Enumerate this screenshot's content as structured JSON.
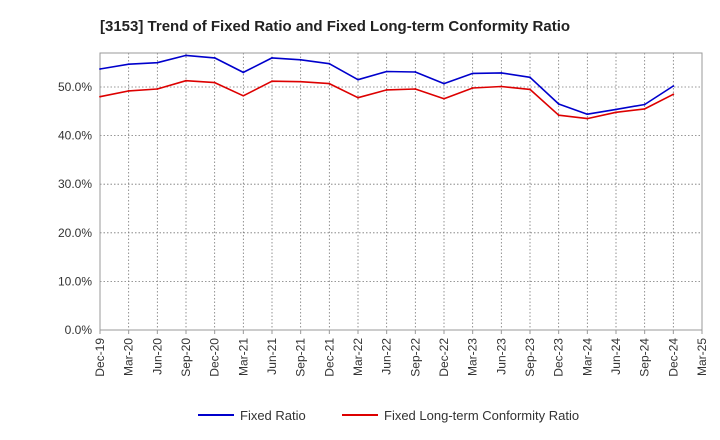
{
  "chart_data": {
    "type": "line",
    "title": "[3153]  Trend of Fixed Ratio and Fixed Long-term Conformity Ratio",
    "xlabel": "",
    "ylabel": "",
    "x": [
      "Dec-19",
      "Mar-20",
      "Jun-20",
      "Sep-20",
      "Dec-20",
      "Mar-21",
      "Jun-21",
      "Sep-21",
      "Dec-21",
      "Mar-22",
      "Jun-22",
      "Sep-22",
      "Dec-22",
      "Mar-23",
      "Jun-23",
      "Sep-23",
      "Dec-23",
      "Mar-24",
      "Jun-24",
      "Sep-24",
      "Dec-24",
      "Mar-25"
    ],
    "yticks": [
      "0.0%",
      "10.0%",
      "20.0%",
      "30.0%",
      "40.0%",
      "50.0%"
    ],
    "ylim": [
      0,
      57
    ],
    "grid": true,
    "legend_position": "bottom",
    "series": [
      {
        "name": "Fixed Ratio",
        "color": "#0000cc",
        "values": [
          53.7,
          54.7,
          55.0,
          56.5,
          56.0,
          53.0,
          56.0,
          55.6,
          54.8,
          51.5,
          53.2,
          53.1,
          50.7,
          52.8,
          52.9,
          52.0,
          46.5,
          44.4,
          45.4,
          46.4,
          50.2,
          null
        ]
      },
      {
        "name": "Fixed Long-term Conformity Ratio",
        "color": "#dd0000",
        "values": [
          48.0,
          49.2,
          49.6,
          51.3,
          50.9,
          48.2,
          51.2,
          51.1,
          50.7,
          47.8,
          49.4,
          49.6,
          47.6,
          49.8,
          50.1,
          49.5,
          44.2,
          43.5,
          44.8,
          45.5,
          48.5,
          null
        ]
      }
    ]
  }
}
